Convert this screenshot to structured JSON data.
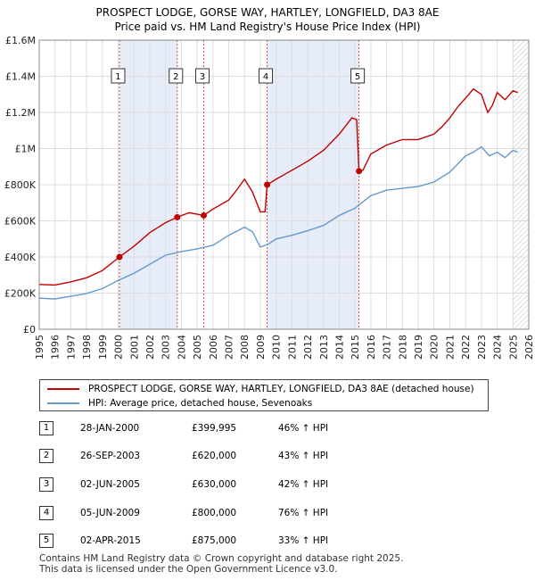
{
  "title_line1": "PROSPECT LODGE, GORSE WAY, HARTLEY, LONGFIELD, DA3 8AE",
  "title_line2": "Price paid vs. HM Land Registry's House Price Index (HPI)",
  "colors": {
    "property": "#c00000",
    "hpi": "#6699cc",
    "shade": "#e6ecf8",
    "vline": "#dd4444"
  },
  "legend": {
    "property_label": "PROSPECT LODGE, GORSE WAY, HARTLEY, LONGFIELD, DA3 8AE (detached house)",
    "hpi_label": "HPI: Average price, detached house, Sevenoaks"
  },
  "sales": [
    {
      "num": "1",
      "date": "28-JAN-2000",
      "price": "£399,995",
      "hpi": "46% ↑ HPI"
    },
    {
      "num": "2",
      "date": "26-SEP-2003",
      "price": "£620,000",
      "hpi": "43% ↑ HPI"
    },
    {
      "num": "3",
      "date": "02-JUN-2005",
      "price": "£630,000",
      "hpi": "42% ↑ HPI"
    },
    {
      "num": "4",
      "date": "05-JUN-2009",
      "price": "£800,000",
      "hpi": "76% ↑ HPI"
    },
    {
      "num": "5",
      "date": "02-APR-2015",
      "price": "£875,000",
      "hpi": "33% ↑ HPI"
    }
  ],
  "footer_line1": "Contains HM Land Registry data © Crown copyright and database right 2025.",
  "footer_line2": "This data is licensed under the Open Government Licence v3.0.",
  "chart_data": {
    "type": "line",
    "xlim": [
      1995,
      2026
    ],
    "ylim": [
      0,
      1600000
    ],
    "x_ticks": [
      "1995",
      "1996",
      "1997",
      "1998",
      "1999",
      "2000",
      "2001",
      "2002",
      "2003",
      "2004",
      "2005",
      "2006",
      "2007",
      "2008",
      "2009",
      "2010",
      "2011",
      "2012",
      "2013",
      "2014",
      "2015",
      "2016",
      "2017",
      "2018",
      "2019",
      "2020",
      "2021",
      "2022",
      "2023",
      "2024",
      "2025",
      "2026"
    ],
    "y_ticks": [
      {
        "value": 0,
        "label": "£0"
      },
      {
        "value": 200000,
        "label": "£200K"
      },
      {
        "value": 400000,
        "label": "£400K"
      },
      {
        "value": 600000,
        "label": "£600K"
      },
      {
        "value": 800000,
        "label": "£800K"
      },
      {
        "value": 1000000,
        "label": "£1M"
      },
      {
        "value": 1200000,
        "label": "£1.2M"
      },
      {
        "value": 1400000,
        "label": "£1.4M"
      },
      {
        "value": 1600000,
        "label": "£1.6M"
      }
    ],
    "grid": true,
    "shaded_ranges": [
      [
        2000.08,
        2003.74
      ],
      [
        2009.43,
        2015.25
      ]
    ],
    "hatched_from": 2025.0,
    "sale_markers": [
      {
        "label": "1",
        "x": 2000.08,
        "y": 399995
      },
      {
        "label": "2",
        "x": 2003.74,
        "y": 620000
      },
      {
        "label": "3",
        "x": 2005.42,
        "y": 630000
      },
      {
        "label": "4",
        "x": 2009.43,
        "y": 800000
      },
      {
        "label": "5",
        "x": 2015.25,
        "y": 875000
      }
    ],
    "series": [
      {
        "name": "PROSPECT LODGE, GORSE WAY, HARTLEY, LONGFIELD, DA3 8AE (detached house)",
        "points": [
          [
            1995,
            248000
          ],
          [
            1996,
            245000
          ],
          [
            1997,
            262000
          ],
          [
            1998,
            285000
          ],
          [
            1999,
            325000
          ],
          [
            2000.08,
            399995
          ],
          [
            2001,
            460000
          ],
          [
            2002,
            535000
          ],
          [
            2003,
            590000
          ],
          [
            2003.74,
            620000
          ],
          [
            2004.5,
            645000
          ],
          [
            2005.42,
            630000
          ],
          [
            2006,
            665000
          ],
          [
            2007,
            715000
          ],
          [
            2007.5,
            770000
          ],
          [
            2008,
            830000
          ],
          [
            2008.5,
            760000
          ],
          [
            2009,
            650000
          ],
          [
            2009.3,
            650000
          ],
          [
            2009.43,
            800000
          ],
          [
            2010,
            830000
          ],
          [
            2011,
            880000
          ],
          [
            2012,
            930000
          ],
          [
            2013,
            990000
          ],
          [
            2014,
            1080000
          ],
          [
            2014.8,
            1170000
          ],
          [
            2015.1,
            1160000
          ],
          [
            2015.25,
            875000
          ],
          [
            2015.5,
            880000
          ],
          [
            2016,
            970000
          ],
          [
            2017,
            1020000
          ],
          [
            2018,
            1050000
          ],
          [
            2019,
            1050000
          ],
          [
            2020,
            1080000
          ],
          [
            2020.5,
            1120000
          ],
          [
            2021,
            1170000
          ],
          [
            2021.5,
            1230000
          ],
          [
            2022,
            1280000
          ],
          [
            2022.5,
            1330000
          ],
          [
            2023,
            1300000
          ],
          [
            2023.4,
            1200000
          ],
          [
            2023.7,
            1240000
          ],
          [
            2024,
            1310000
          ],
          [
            2024.5,
            1270000
          ],
          [
            2025,
            1320000
          ],
          [
            2025.3,
            1310000
          ]
        ]
      },
      {
        "name": "HPI: Average price, detached house, Sevenoaks",
        "points": [
          [
            1995,
            172000
          ],
          [
            1996,
            168000
          ],
          [
            1997,
            182000
          ],
          [
            1998,
            198000
          ],
          [
            1999,
            225000
          ],
          [
            2000,
            270000
          ],
          [
            2001,
            310000
          ],
          [
            2002,
            360000
          ],
          [
            2003,
            410000
          ],
          [
            2004,
            430000
          ],
          [
            2005,
            445000
          ],
          [
            2006,
            465000
          ],
          [
            2007,
            520000
          ],
          [
            2008,
            565000
          ],
          [
            2008.5,
            540000
          ],
          [
            2009,
            455000
          ],
          [
            2009.5,
            470000
          ],
          [
            2010,
            500000
          ],
          [
            2011,
            520000
          ],
          [
            2012,
            545000
          ],
          [
            2013,
            575000
          ],
          [
            2014,
            630000
          ],
          [
            2015,
            670000
          ],
          [
            2016,
            740000
          ],
          [
            2017,
            770000
          ],
          [
            2018,
            780000
          ],
          [
            2019,
            790000
          ],
          [
            2020,
            815000
          ],
          [
            2021,
            870000
          ],
          [
            2022,
            960000
          ],
          [
            2022.5,
            980000
          ],
          [
            2023,
            1010000
          ],
          [
            2023.5,
            960000
          ],
          [
            2024,
            980000
          ],
          [
            2024.5,
            950000
          ],
          [
            2025,
            990000
          ],
          [
            2025.3,
            980000
          ]
        ]
      }
    ]
  }
}
